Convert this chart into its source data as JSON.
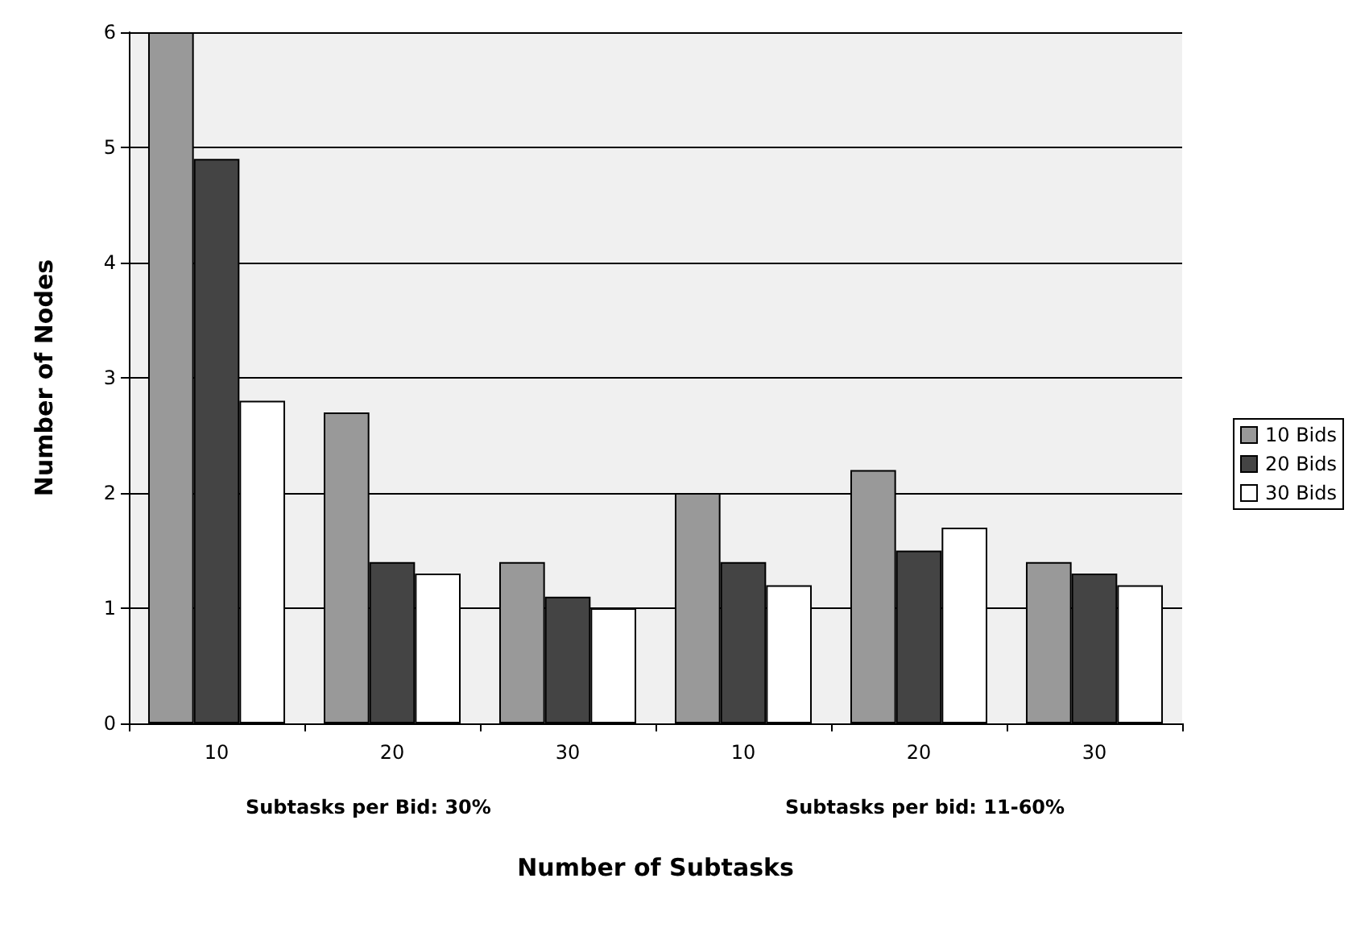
{
  "chart_data": {
    "type": "bar",
    "xlabel": "Number of Subtasks",
    "ylabel": "Number of Nodes",
    "categories": [
      "10",
      "20",
      "30",
      "10",
      "20",
      "30"
    ],
    "series": [
      {
        "name": "10 Bids",
        "color": "#999999",
        "values": [
          6,
          2.7,
          1.4,
          2.0,
          2.2,
          1.4
        ]
      },
      {
        "name": "20 Bids",
        "color": "#444444",
        "values": [
          4.9,
          1.4,
          1.1,
          1.4,
          1.5,
          1.3
        ]
      },
      {
        "name": "30 Bids",
        "color": "#ffffff",
        "values": [
          2.8,
          1.3,
          1.0,
          1.2,
          1.7,
          1.2
        ]
      }
    ],
    "ylim": [
      0,
      6
    ],
    "yticks": [
      0,
      1,
      2,
      3,
      4,
      5,
      6
    ],
    "grid": "y",
    "legend": "right",
    "annotations": [
      "Subtasks per Bid: 30%",
      "Subtasks per bid: 11-60%"
    ]
  }
}
